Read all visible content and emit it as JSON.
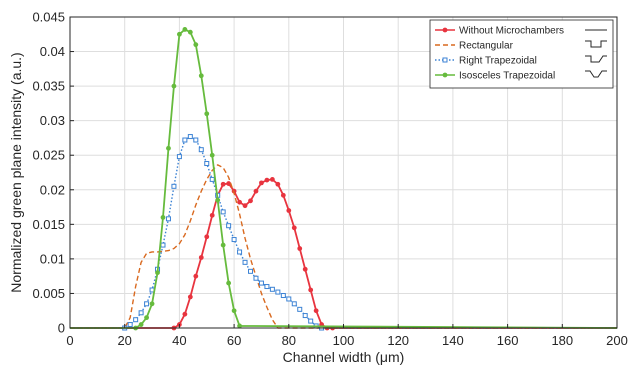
{
  "chart_data": {
    "type": "line",
    "title": "",
    "xlabel": "Channel width (μm)",
    "ylabel": "Normalized green plane intensity (a.u.)",
    "xlim": [
      0,
      200
    ],
    "ylim": [
      0,
      0.045
    ],
    "xticks": [
      "0",
      "20",
      "40",
      "60",
      "80",
      "100",
      "120",
      "140",
      "160",
      "180",
      "200"
    ],
    "yticks": [
      "0",
      "0.005",
      "0.01",
      "0.015",
      "0.02",
      "0.025",
      "0.03",
      "0.035",
      "0.04",
      "0.045"
    ],
    "grid": true,
    "legend_position": "top-right",
    "series": [
      {
        "name": "Without Microchambers",
        "color": "#e8343f",
        "dash": "solid",
        "marker": "dot",
        "x": [
          0,
          20,
          38,
          40,
          42,
          44,
          46,
          48,
          50,
          52,
          54,
          56,
          58,
          60,
          62,
          64,
          66,
          68,
          70,
          72,
          74,
          76,
          78,
          80,
          82,
          84,
          86,
          88,
          90,
          92,
          94,
          96,
          200
        ],
        "y": [
          0,
          0,
          0,
          0.0005,
          0.002,
          0.0045,
          0.0075,
          0.0102,
          0.0132,
          0.0163,
          0.0192,
          0.0208,
          0.0209,
          0.0198,
          0.0182,
          0.0177,
          0.0184,
          0.0198,
          0.021,
          0.0214,
          0.0215,
          0.0208,
          0.0192,
          0.017,
          0.0145,
          0.0115,
          0.0085,
          0.0055,
          0.0025,
          0.0005,
          0,
          0,
          0
        ]
      },
      {
        "name": "Rectangular",
        "color": "#d9691f",
        "dash": "dashed",
        "marker": "none",
        "x": [
          0,
          20,
          22,
          24,
          26,
          28,
          30,
          32,
          34,
          36,
          38,
          40,
          42,
          44,
          46,
          48,
          50,
          52,
          54,
          56,
          58,
          60,
          62,
          64,
          66,
          68,
          70,
          72,
          74,
          76,
          78,
          200
        ],
        "y": [
          0,
          0,
          0.0015,
          0.006,
          0.0095,
          0.0108,
          0.011,
          0.011,
          0.0111,
          0.0112,
          0.0115,
          0.0122,
          0.0135,
          0.0155,
          0.0178,
          0.0198,
          0.0215,
          0.0228,
          0.0236,
          0.0232,
          0.0218,
          0.0195,
          0.0165,
          0.013,
          0.01,
          0.0075,
          0.005,
          0.003,
          0.0012,
          0,
          0,
          0
        ]
      },
      {
        "name": "Right Trapezoidal",
        "color": "#3b82d4",
        "dash": "dotted",
        "marker": "square",
        "x": [
          0,
          20,
          22,
          24,
          26,
          28,
          30,
          32,
          34,
          36,
          38,
          40,
          42,
          44,
          46,
          48,
          50,
          52,
          54,
          56,
          58,
          60,
          62,
          64,
          66,
          68,
          70,
          72,
          74,
          76,
          78,
          80,
          82,
          84,
          86,
          88,
          90,
          92,
          200
        ],
        "y": [
          0,
          0,
          0.0005,
          0.0012,
          0.0022,
          0.0035,
          0.0055,
          0.0085,
          0.012,
          0.0158,
          0.0205,
          0.0248,
          0.0272,
          0.0277,
          0.0272,
          0.0258,
          0.0238,
          0.0215,
          0.0192,
          0.0168,
          0.0148,
          0.0128,
          0.011,
          0.0095,
          0.0082,
          0.0072,
          0.0065,
          0.006,
          0.0056,
          0.0052,
          0.0047,
          0.0042,
          0.0035,
          0.0027,
          0.0018,
          0.001,
          0.0003,
          0,
          0
        ]
      },
      {
        "name": "Isosceles Trapezoidal",
        "color": "#66bb3d",
        "dash": "solid",
        "marker": "dot",
        "x": [
          0,
          24,
          26,
          28,
          30,
          32,
          34,
          36,
          38,
          40,
          42,
          44,
          46,
          48,
          50,
          52,
          54,
          56,
          58,
          60,
          62,
          200
        ],
        "y": [
          0,
          0,
          0.0005,
          0.0015,
          0.0035,
          0.008,
          0.016,
          0.026,
          0.035,
          0.0425,
          0.0432,
          0.0428,
          0.041,
          0.0365,
          0.031,
          0.025,
          0.0185,
          0.012,
          0.0065,
          0.0025,
          0.0003,
          0
        ]
      }
    ]
  },
  "legend_icons": [
    "straight-channel-icon",
    "rectangular-chamber-icon",
    "right-trapezoidal-chamber-icon",
    "isosceles-trapezoidal-chamber-icon"
  ]
}
